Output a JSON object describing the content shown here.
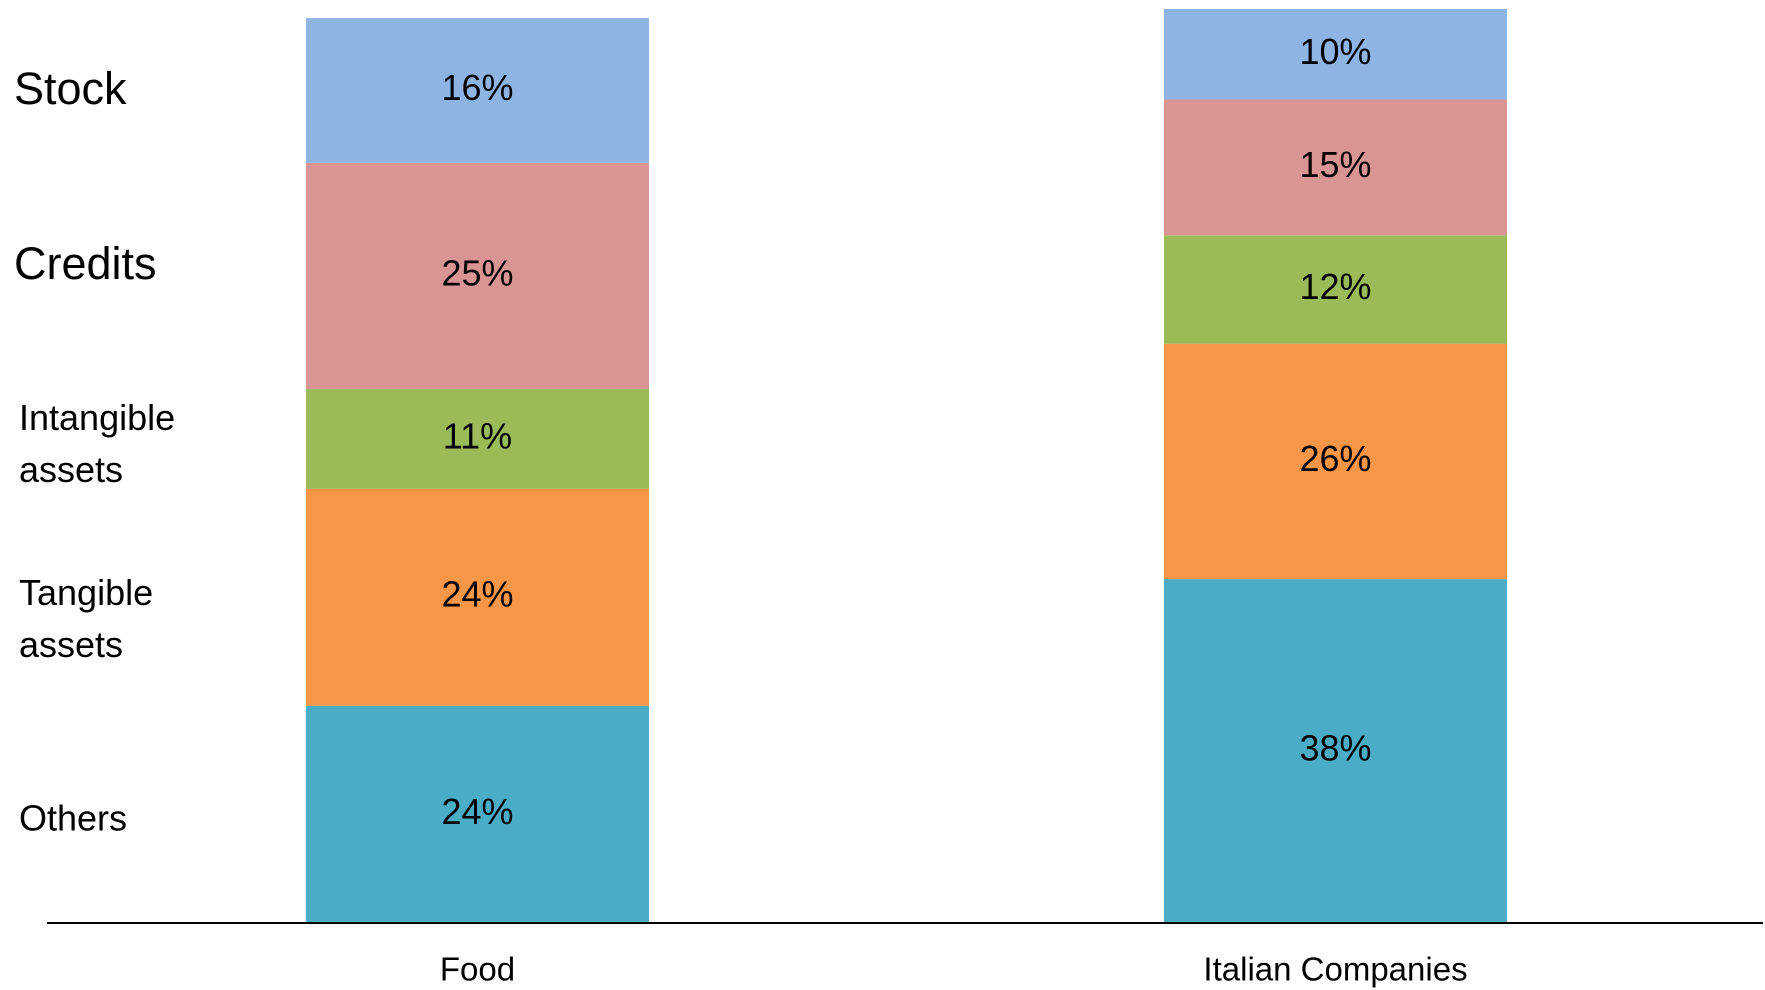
{
  "chart_data": {
    "type": "stacked_bar",
    "categories": [
      "Food",
      "Italian Companies"
    ],
    "ylim": [
      0,
      101
    ],
    "series": [
      {
        "name": "Others",
        "color": "#4bacc6",
        "label_color": "#000000",
        "values": [
          24,
          38
        ],
        "value_labels": [
          "24%",
          "38%"
        ]
      },
      {
        "name": "Tangible assets",
        "color": "#f79646",
        "label_color": "#000000",
        "values": [
          24,
          26
        ],
        "value_labels": [
          "24%",
          "26%"
        ]
      },
      {
        "name": "Intangible assets",
        "color": "#9bbb59",
        "label_color": "#000000",
        "values": [
          11,
          12
        ],
        "value_labels": [
          "11%",
          "12%"
        ]
      },
      {
        "name": "Credits",
        "color": "#d99594",
        "label_color": "#c0143c",
        "values": [
          25,
          15
        ],
        "value_labels": [
          "25%",
          "15%"
        ]
      },
      {
        "name": "Stock",
        "color": "#8eb4e3",
        "label_color": "#c0143c",
        "values": [
          16,
          10
        ],
        "value_labels": [
          "16%",
          "10%"
        ]
      }
    ]
  }
}
